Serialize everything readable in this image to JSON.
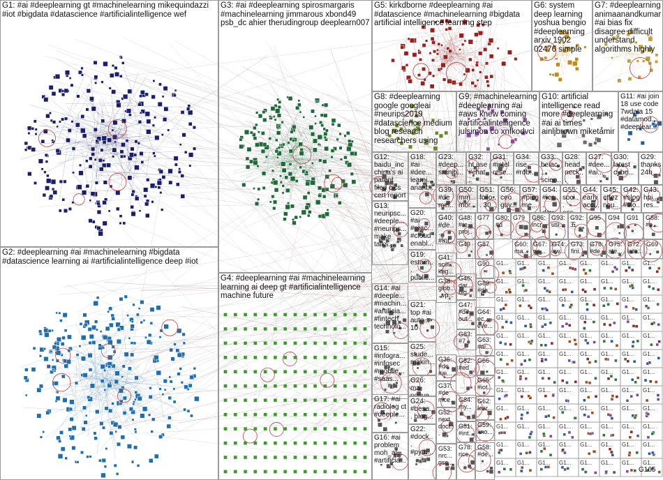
{
  "groups": [
    {
      "id": "G1",
      "label": "G1: #ai #deeplearning gt #machinelearning mikequindazzi #iot #bigdata #datascience #artificialintelligence wef",
      "color": "#1a1f6b"
    },
    {
      "id": "G2",
      "label": "G2: #deeplearning #ai #machinelearning #bigdata #datascience learning ai #artificialintelligence deep #iot",
      "color": "#1f6fb0"
    },
    {
      "id": "G3",
      "label": "G3: #ai #deeplearning spirosmargaris #machinelearning jimmarous xbond49 psb_dc ahier therudingroup deeplearn007",
      "color": "#1e6a3a"
    },
    {
      "id": "G4",
      "label": "G4: #deeplearning #ai #machinelearning learning ai deep gt #artificialintelligence machine future",
      "color": "#3a9a2a"
    },
    {
      "id": "G5",
      "label": "G5: kirkdborne #deeplearning #ai #datascience #machinelearning #bigdata artificial intelligence learning step",
      "color": "#9a2020"
    },
    {
      "id": "G6",
      "label": "G6: system deep learning yoshua bengio #deeplearning arxiv 1902 02476 simple",
      "color": "#c08a20"
    },
    {
      "id": "G7",
      "label": "G7: #deeplearning animaanandkumar #ai bias fix disagree difficult understand algorithms highly",
      "color": "#c0a030"
    },
    {
      "id": "G8",
      "label": "G8: #deeplearning google googleai #neurips2019 #datascience medium blog research researchers using",
      "color": "#6a8a2a"
    },
    {
      "id": "G9",
      "label": "G9: #machinelearning #deeplearning #ai #aws knew coming #artificialintelligence julsimon co xnfkodvci",
      "color": "#8a4aa0"
    },
    {
      "id": "G10",
      "label": "G10: artificial intelligence read more #deeplearning #ai ai times ainljbrown miketamir",
      "color": "#6a6a6a"
    },
    {
      "id": "G11",
      "label": "G11: #ai join 18 use code 7wdata 15 #datamod... #deeplear...",
      "color": "#2a5aa0"
    },
    {
      "id": "G12",
      "label": "G12: baidu_inc china's ai patent filed cics cert report",
      "color": "#555"
    },
    {
      "id": "G13",
      "label": "G13: neuripsc... #deeple... #neurips... make talks...",
      "color": "#555"
    },
    {
      "id": "G14",
      "label": "G14: #ai #deeple... #machin... #artificia... #fintech technolo...",
      "color": "#555"
    },
    {
      "id": "G15",
      "label": "G15: #infogra... #infosec #mobile... #saas...",
      "color": "#555"
    },
    {
      "id": "G16",
      "label": "G16: #ai problem moh_al... #artificia...",
      "color": "#555"
    },
    {
      "id": "G17",
      "label": "G17: #ai radiolog ct #deeple...",
      "color": "#555"
    },
    {
      "id": "G18",
      "label": "G18: #ai #dee... learni... anant...",
      "color": "#555"
    },
    {
      "id": "G19",
      "label": "G19: estam... public... towar... data...",
      "color": "#555"
    },
    {
      "id": "G20",
      "label": "G20: #ai #mac... #cloud enabl...",
      "color": "#555"
    },
    {
      "id": "G21",
      "label": "G21: top #ai auto... 10",
      "color": "#555"
    },
    {
      "id": "G22",
      "label": "G22: #dock... #pyth...",
      "color": "#555"
    },
    {
      "id": "G23",
      "label": "G23: #deep... sranjb...",
      "color": "#555"
    },
    {
      "id": "G24",
      "label": "G24: #besa... blog...",
      "color": "#555"
    },
    {
      "id": "G25",
      "label": "G25: stude... makin...",
      "color": "#555"
    },
    {
      "id": "G26",
      "label": "G26: ma nouve...",
      "color": "#555"
    },
    {
      "id": "G27",
      "label": "G27: #dee... #ai...",
      "color": "#555"
    },
    {
      "id": "G28",
      "label": "G28: head neck...",
      "color": "#555"
    },
    {
      "id": "G29",
      "label": "G29: thanks 24h",
      "color": "#555"
    },
    {
      "id": "G30",
      "label": "G30: latest cybe...",
      "color": "#555"
    },
    {
      "id": "G31",
      "label": "G31: #intel rese...",
      "color": "#555"
    },
    {
      "id": "G32",
      "label": "G32: ht use #chat...",
      "color": "#555"
    },
    {
      "id": "G33",
      "label": "G33: beiac... scien...",
      "color": "#555"
    },
    {
      "id": "G34",
      "label": "G34: rise #rob...",
      "color": "#555"
    },
    {
      "id": "G36",
      "label": "G36: #de #ai...",
      "color": "#555"
    },
    {
      "id": "G37",
      "label": "G37: #de mce...",
      "color": "#555"
    },
    {
      "id": "G38",
      "label": "G38: glob... vp...",
      "color": "#555"
    },
    {
      "id": "G39",
      "label": "G39: #de mei...",
      "color": "#555"
    },
    {
      "id": "G40",
      "label": "G40: #de... #int...",
      "color": "#555"
    },
    {
      "id": "G41",
      "label": "G41: scili... kag...",
      "color": "#555"
    },
    {
      "id": "G42",
      "label": "G42: #slog #slo...",
      "color": "#555"
    },
    {
      "id": "G43",
      "label": "G43: hpi... res...",
      "color": "#555"
    },
    {
      "id": "G44",
      "label": "G44: early acc...",
      "color": "#555"
    },
    {
      "id": "G45",
      "label": "G45: ettez nou...",
      "color": "#555"
    },
    {
      "id": "G46",
      "label": "G46: dar... big...",
      "color": "#555"
    },
    {
      "id": "G47",
      "label": "G47: #de... out...",
      "color": "#555"
    },
    {
      "id": "G48",
      "label": "G48: #re... proj...",
      "color": "#555"
    },
    {
      "id": "G49",
      "label": "G49",
      "color": "#555"
    },
    {
      "id": "G50",
      "label": "G50: mm... mor...",
      "color": "#555"
    },
    {
      "id": "G51",
      "label": "G51: follo... 30...",
      "color": "#555"
    },
    {
      "id": "G52",
      "label": "G52: next doct...",
      "color": "#555"
    },
    {
      "id": "G53",
      "label": "G53: nrc... gsc...",
      "color": "#555"
    },
    {
      "id": "G54",
      "label": "G54: #ics... day...",
      "color": "#555"
    },
    {
      "id": "G55",
      "label": "G55: soci... oss...",
      "color": "#555"
    },
    {
      "id": "G56",
      "label": "G56: ceo guy...",
      "color": "#555"
    },
    {
      "id": "G57",
      "label": "G57: #pico me...",
      "color": "#555"
    },
    {
      "id": "G58",
      "label": "G58: #de...",
      "color": "#555"
    },
    {
      "id": "G59",
      "label": "G59: kno...",
      "color": "#555"
    },
    {
      "id": "G60",
      "label": "G60: ma...",
      "color": "#555"
    },
    {
      "id": "G61",
      "label": "G61: #at...",
      "color": "#555"
    },
    {
      "id": "G62",
      "label": "G62: lear...",
      "color": "#555"
    },
    {
      "id": "G63",
      "label": "G63: #ai...",
      "color": "#555"
    },
    {
      "id": "G64",
      "label": "G64: ec... eve...",
      "color": "#555"
    },
    {
      "id": "G65",
      "label": "G65: #iot...",
      "color": "#555"
    },
    {
      "id": "G66",
      "label": "G66",
      "color": "#555"
    },
    {
      "id": "G67",
      "label": "G67: na...",
      "color": "#555"
    },
    {
      "id": "G69",
      "label": "G69",
      "color": "#555"
    },
    {
      "id": "G72",
      "label": "G72: late...",
      "color": "#555"
    },
    {
      "id": "G73",
      "label": "G73: fini...",
      "color": "#555"
    },
    {
      "id": "G74",
      "label": "G74: aw...",
      "color": "#555"
    },
    {
      "id": "G75",
      "label": "G75: ste...",
      "color": "#555"
    },
    {
      "id": "G76",
      "label": "G76: #de",
      "color": "#555"
    },
    {
      "id": "G77",
      "label": "G77",
      "color": "#555"
    },
    {
      "id": "G78",
      "label": "G78: rice...",
      "color": "#555"
    },
    {
      "id": "G79",
      "label": "G79",
      "color": "#555"
    },
    {
      "id": "G80",
      "label": "G80: #d",
      "color": "#555"
    },
    {
      "id": "G81",
      "label": "G81: #int...",
      "color": "#555"
    },
    {
      "id": "G82",
      "label": "G82: #ed",
      "color": "#555"
    },
    {
      "id": "G83",
      "label": "G83: #7",
      "color": "#555"
    },
    {
      "id": "G84",
      "label": "G84: my...",
      "color": "#555"
    },
    {
      "id": "G86",
      "label": "G86: incr...",
      "color": "#555"
    },
    {
      "id": "G87",
      "label": "G87",
      "color": "#555"
    },
    {
      "id": "G88",
      "label": "G88: #e...",
      "color": "#555"
    },
    {
      "id": "G89",
      "label": "G89: #de",
      "color": "#555"
    },
    {
      "id": "G90",
      "label": "G90",
      "color": "#555"
    },
    {
      "id": "G91",
      "label": "G91",
      "color": "#555"
    },
    {
      "id": "G92",
      "label": "G92: 五",
      "color": "#555"
    },
    {
      "id": "G93",
      "label": "G93: usi...",
      "color": "#555"
    },
    {
      "id": "G94",
      "label": "G94",
      "color": "#555"
    },
    {
      "id": "G95",
      "label": "G95",
      "color": "#555"
    },
    {
      "id": "G165",
      "label": "G165",
      "color": "#555"
    }
  ],
  "chart_data": {
    "type": "network",
    "groups_shown": 165,
    "edges_between_groups": true
  }
}
